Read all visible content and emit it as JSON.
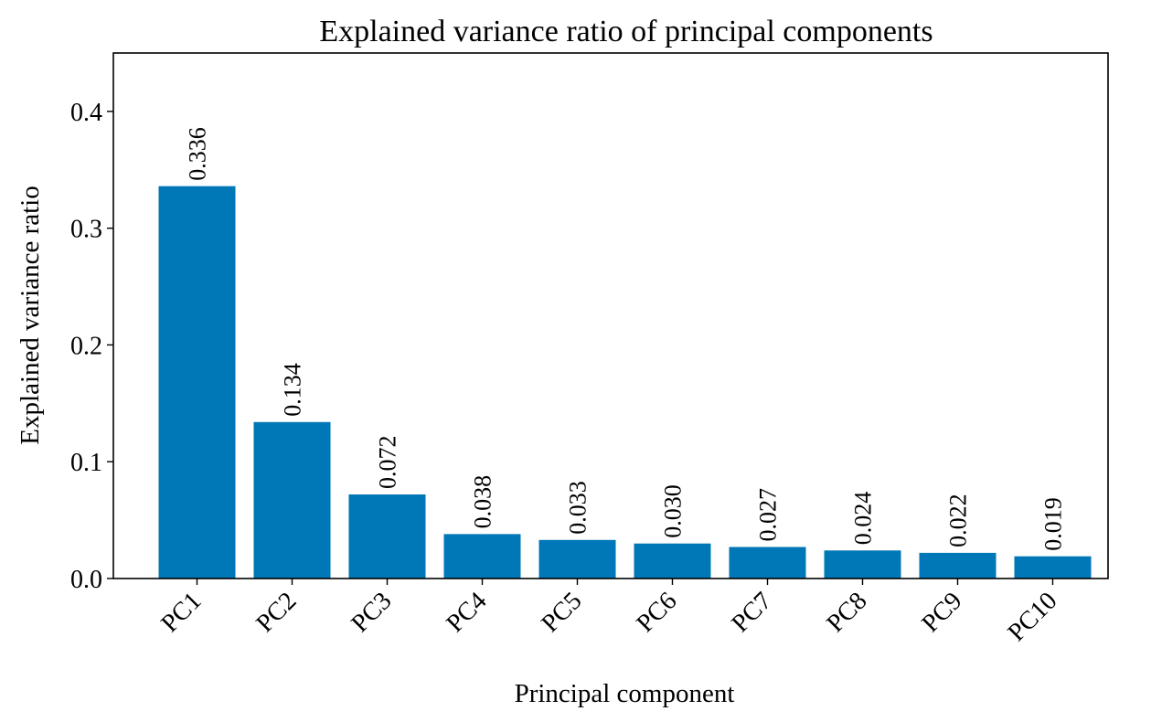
{
  "chart_data": {
    "type": "bar",
    "title": "Explained variance ratio of principal components",
    "xlabel": "Principal component",
    "ylabel": "Explained variance ratio",
    "categories": [
      "PC1",
      "PC2",
      "PC3",
      "PC4",
      "PC5",
      "PC6",
      "PC7",
      "PC8",
      "PC9",
      "PC10"
    ],
    "values": [
      0.336,
      0.134,
      0.072,
      0.038,
      0.033,
      0.03,
      0.027,
      0.024,
      0.022,
      0.019
    ],
    "value_labels": [
      "0.336",
      "0.134",
      "0.072",
      "0.038",
      "0.033",
      "0.030",
      "0.027",
      "0.024",
      "0.022",
      "0.019"
    ],
    "ylim": [
      0,
      0.45
    ],
    "yticks": [
      0.0,
      0.1,
      0.2,
      0.3,
      0.4
    ],
    "ytick_labels": [
      "0.0",
      "0.1",
      "0.2",
      "0.3",
      "0.4"
    ],
    "grid": false,
    "bar_color": "#0077b6"
  }
}
